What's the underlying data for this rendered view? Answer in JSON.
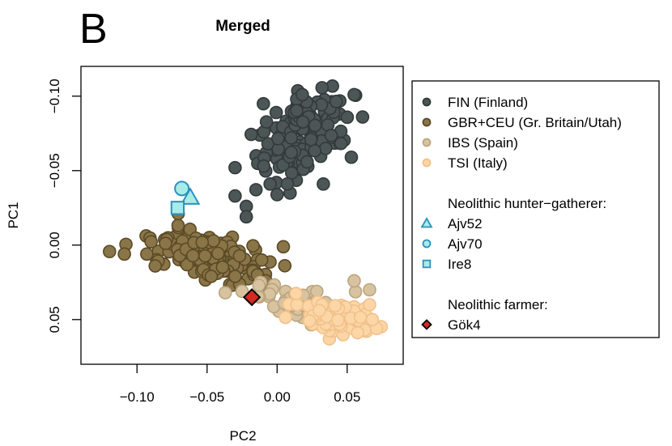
{
  "panel_label": "B",
  "chart_data": {
    "type": "scatter",
    "title": "Merged",
    "xlabel": "PC2",
    "ylabel": "PC1",
    "xlim": [
      -0.14,
      0.09
    ],
    "ylim": [
      0.08,
      -0.12
    ],
    "y_inverted": true,
    "xticks": [
      -0.1,
      -0.05,
      0.0,
      0.05
    ],
    "xtick_labels": [
      "−0.10",
      "−0.05",
      "0.00",
      "0.05"
    ],
    "yticks": [
      -0.1,
      -0.05,
      0.0,
      0.05
    ],
    "ytick_labels": [
      "−0.10",
      "−0.05",
      "0.00",
      "0.05"
    ],
    "grid": false,
    "legend_position": "right",
    "series": [
      {
        "name": "FIN (Finland)",
        "marker": "circle",
        "fill": "#4d5656",
        "stroke": "#323a3a",
        "clusters": [
          {
            "cx": 0.02,
            "cy": -0.073,
            "sx": 0.017,
            "sy": 0.016,
            "r": -0.6,
            "n": 110
          },
          {
            "cx": 0.009,
            "cy": -0.088,
            "sx": 0.012,
            "sy": 0.008,
            "r": -0.3,
            "n": 20
          }
        ],
        "points": [
          {
            "x": -0.03,
            "y": -0.033
          },
          {
            "x": -0.022,
            "y": -0.026
          },
          {
            "x": -0.022,
            "y": -0.019
          },
          {
            "x": -0.03,
            "y": -0.052
          },
          {
            "x": 0.055,
            "y": -0.101
          },
          {
            "x": 0.018,
            "y": -0.101
          },
          {
            "x": 0.053,
            "y": -0.059
          },
          {
            "x": 0.033,
            "y": -0.041
          },
          {
            "x": -0.005,
            "y": -0.041
          },
          {
            "x": 0.061,
            "y": -0.086
          }
        ]
      },
      {
        "name": "GBR+CEU (Gr. Britain/Utah)",
        "marker": "circle",
        "fill": "#8a7548",
        "stroke": "#5a4a26",
        "clusters": [
          {
            "cx": -0.05,
            "cy": 0.007,
            "sx": 0.02,
            "sy": 0.008,
            "r": 0.4,
            "n": 150
          },
          {
            "cx": -0.04,
            "cy": 0.012,
            "sx": 0.014,
            "sy": 0.006,
            "r": 0.5,
            "n": 20
          }
        ],
        "points": [
          {
            "x": -0.109,
            "y": 0.006
          },
          {
            "x": -0.093,
            "y": 0.006
          },
          {
            "x": -0.087,
            "y": 0.014
          },
          {
            "x": -0.014,
            "y": 0.02
          },
          {
            "x": -0.008,
            "y": 0.024
          },
          {
            "x": -0.011,
            "y": 0.01
          },
          {
            "x": -0.03,
            "y": 0.021
          },
          {
            "x": -0.047,
            "y": 0.021
          }
        ]
      },
      {
        "name": "IBS (Spain)",
        "marker": "circle",
        "fill": "#d8c3a0",
        "stroke": "#bba57e",
        "clusters": [
          {
            "cx": 0.02,
            "cy": 0.04,
            "sx": 0.016,
            "sy": 0.006,
            "r": 0.4,
            "n": 60
          }
        ],
        "points": [
          {
            "x": -0.037,
            "y": 0.032
          },
          {
            "x": -0.025,
            "y": 0.031
          },
          {
            "x": -0.013,
            "y": 0.027
          },
          {
            "x": 0.055,
            "y": 0.024
          },
          {
            "x": 0.066,
            "y": 0.03
          },
          {
            "x": 0.005,
            "y": 0.039
          }
        ]
      },
      {
        "name": "TSI (Italy)",
        "marker": "circle",
        "fill": "#fcd6a6",
        "stroke": "#f1c18b",
        "clusters": [
          {
            "cx": 0.043,
            "cy": 0.048,
            "sx": 0.013,
            "sy": 0.005,
            "r": 0.3,
            "n": 120
          }
        ],
        "points": [
          {
            "x": 0.071,
            "y": 0.056
          },
          {
            "x": 0.066,
            "y": 0.04
          },
          {
            "x": 0.068,
            "y": 0.05
          }
        ]
      },
      {
        "name": "Ajv52",
        "marker": "triangle",
        "fill": "#a9ece6",
        "stroke": "#2a91c2",
        "points": [
          {
            "x": -0.062,
            "y": -0.032
          }
        ]
      },
      {
        "name": "Ajv70",
        "marker": "circle",
        "fill": "#a9ece6",
        "stroke": "#2a91c2",
        "points": [
          {
            "x": -0.068,
            "y": -0.038
          }
        ]
      },
      {
        "name": "Ire8",
        "marker": "square",
        "fill": "#a9ece6",
        "stroke": "#2a91c2",
        "points": [
          {
            "x": -0.071,
            "y": -0.025
          }
        ]
      },
      {
        "name": "Gök4",
        "marker": "diamond",
        "fill": "#d42a20",
        "stroke": "#000000",
        "points": [
          {
            "x": -0.018,
            "y": 0.035
          }
        ]
      }
    ],
    "legend": {
      "groups": [
        {
          "heading": "",
          "items": [
            {
              "label": "FIN (Finland)",
              "series": 0
            },
            {
              "label": "GBR+CEU (Gr. Britain/Utah)",
              "series": 1
            },
            {
              "label": "IBS (Spain)",
              "series": 2
            },
            {
              "label": "TSI (Italy)",
              "series": 3
            }
          ]
        },
        {
          "heading": "Neolithic hunter−gatherer:",
          "items": [
            {
              "label": "Ajv52",
              "series": 4
            },
            {
              "label": "Ajv70",
              "series": 5
            },
            {
              "label": "Ire8",
              "series": 6
            }
          ]
        },
        {
          "heading": "Neolithic farmer:",
          "items": [
            {
              "label": "Gök4",
              "series": 7
            }
          ]
        }
      ]
    }
  }
}
